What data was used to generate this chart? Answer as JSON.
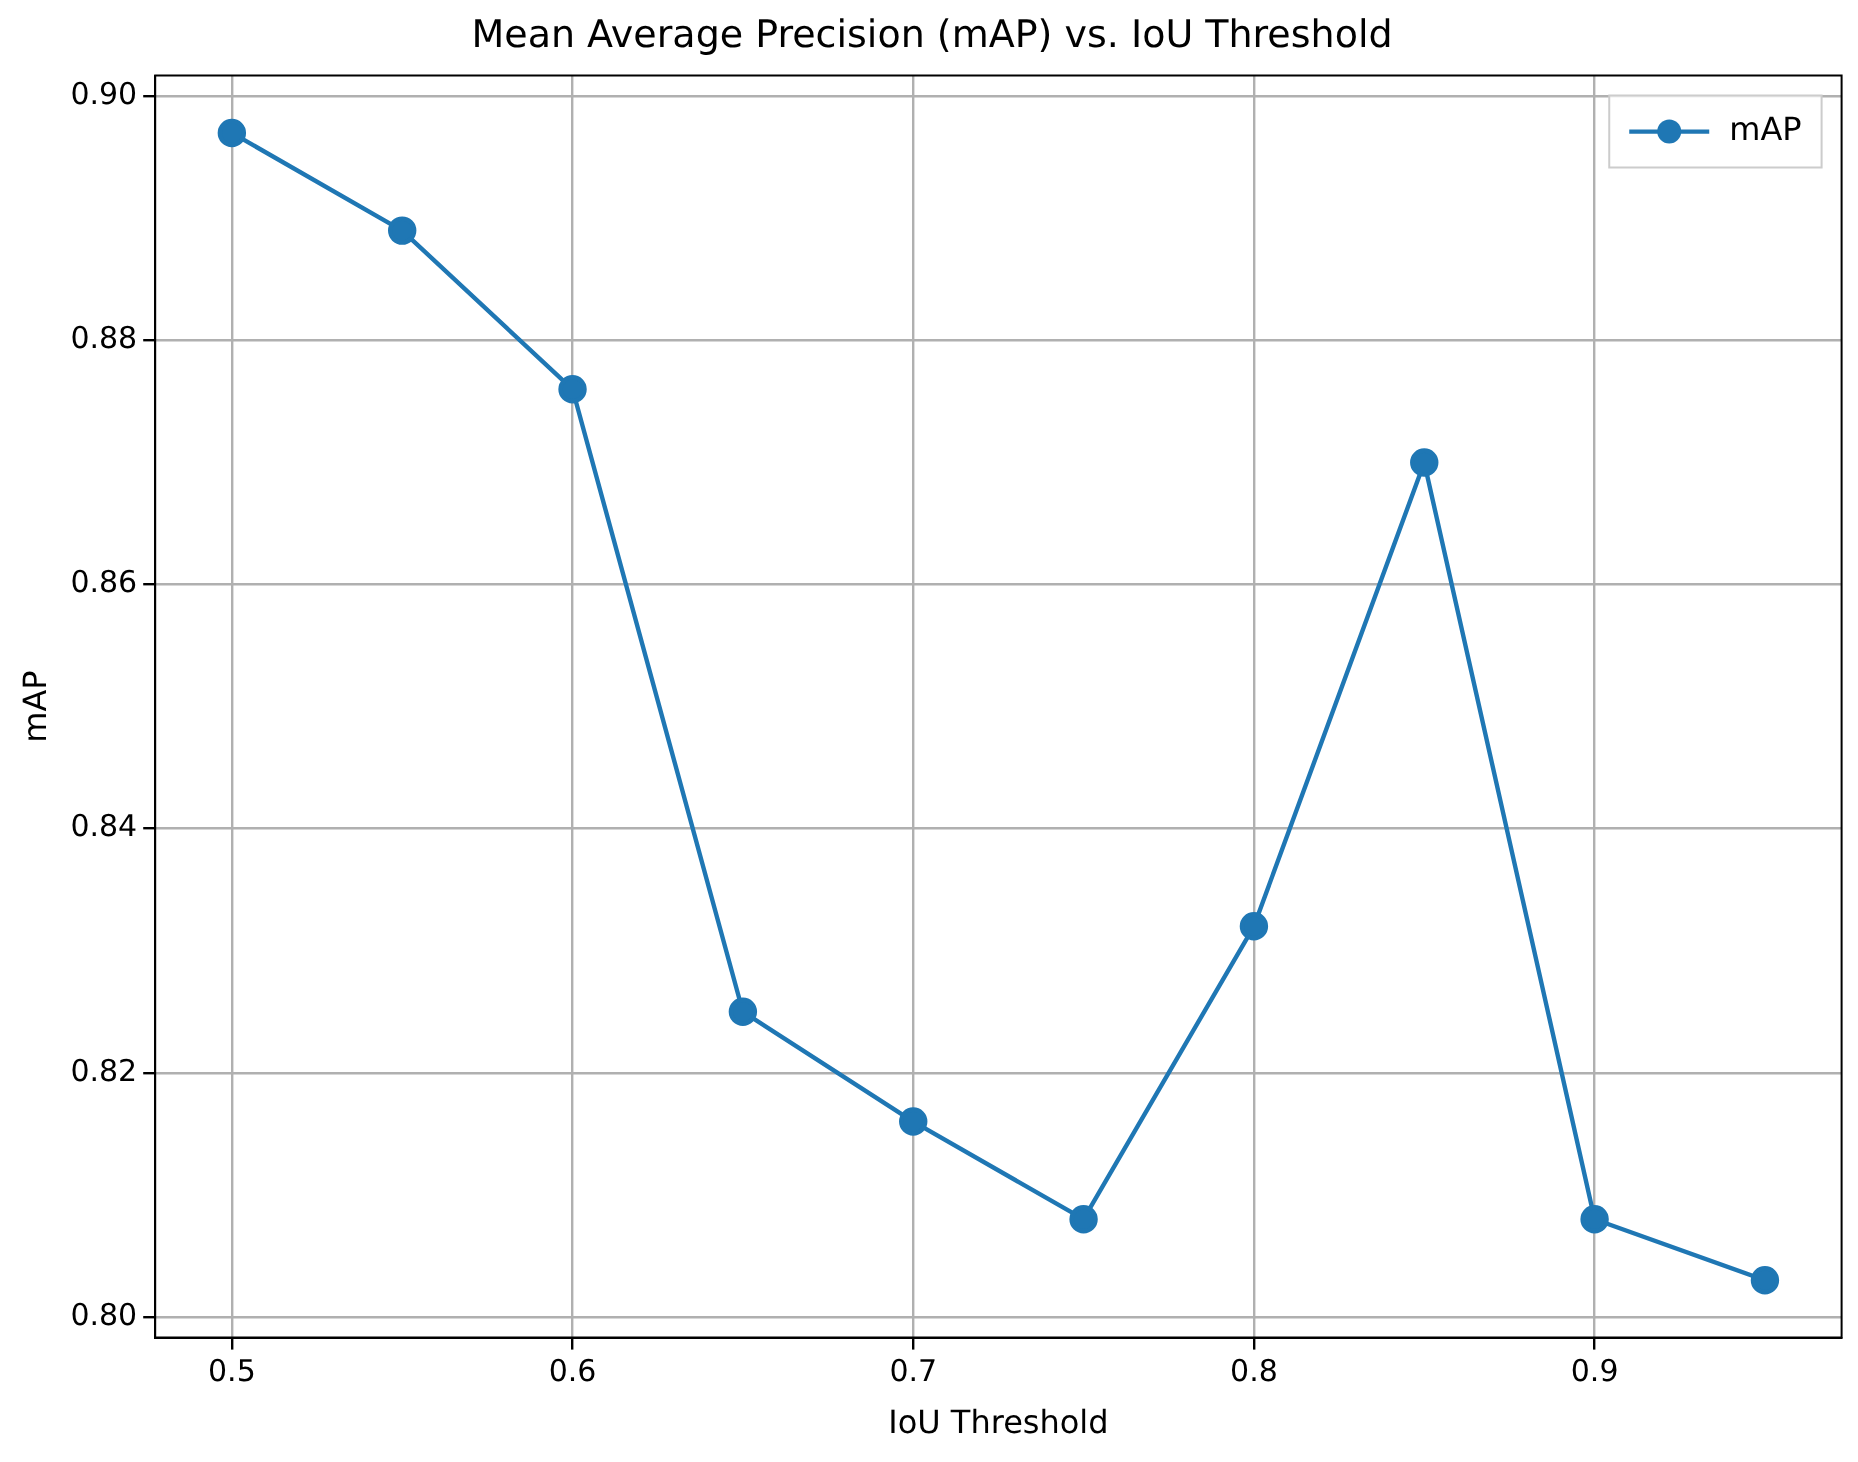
{
  "chart_data": {
    "type": "line",
    "title": "Mean Average Precision (mAP) vs. IoU Threshold",
    "xlabel": "IoU Threshold",
    "ylabel": "mAP",
    "x": [
      0.5,
      0.55,
      0.6,
      0.65,
      0.7,
      0.75,
      0.8,
      0.85,
      0.9,
      0.95
    ],
    "series": [
      {
        "name": "mAP",
        "color": "#1f77b4",
        "values": [
          0.897,
          0.889,
          0.876,
          0.825,
          0.816,
          0.808,
          0.832,
          0.87,
          0.808,
          0.803
        ]
      }
    ],
    "xlim": [
      0.4775,
      0.9725
    ],
    "xticks": [
      0.5,
      0.6,
      0.7,
      0.8,
      0.9
    ],
    "ylim": [
      0.7983,
      0.9017
    ],
    "yticks": [
      {
        "value": 0.8,
        "label": "0.80"
      },
      {
        "value": 0.82,
        "label": "0.82"
      },
      {
        "value": 0.84,
        "label": "0.84"
      },
      {
        "value": 0.86,
        "label": "0.86"
      },
      {
        "value": 0.88,
        "label": "0.88"
      },
      {
        "value": 0.9,
        "label": "0.90"
      }
    ],
    "grid": true,
    "legend": "top right",
    "marker": "circle",
    "line_style": "solid"
  }
}
